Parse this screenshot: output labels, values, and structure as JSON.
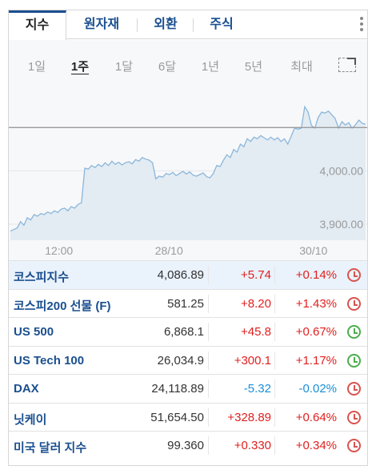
{
  "tabs": [
    {
      "label": "지수",
      "active": true
    },
    {
      "label": "원자재",
      "active": false
    },
    {
      "label": "외환",
      "active": false
    },
    {
      "label": "주식",
      "active": false
    }
  ],
  "ranges": [
    {
      "label": "1일",
      "active": false
    },
    {
      "label": "1주",
      "active": true
    },
    {
      "label": "1달",
      "active": false
    },
    {
      "label": "6달",
      "active": false
    },
    {
      "label": "1년",
      "active": false
    },
    {
      "label": "5년",
      "active": false
    },
    {
      "label": "최대",
      "active": false
    }
  ],
  "chart_data": {
    "type": "area",
    "title": "",
    "xlabel": "",
    "ylabel": "",
    "x_tick_labels": [
      "12:00",
      "28/10",
      "30/10"
    ],
    "y_tick_labels": [
      "4,000.00",
      "3,900.00"
    ],
    "y_ticks": [
      4000,
      3900
    ],
    "ylim": [
      3870,
      4155
    ],
    "reference_value": 4081,
    "grid": true,
    "values": [
      3887,
      3890,
      3893,
      3905,
      3898,
      3912,
      3908,
      3918,
      3915,
      3920,
      3918,
      3923,
      3920,
      3925,
      3922,
      3928,
      3930,
      3925,
      3933,
      3930,
      3937,
      3940,
      4005,
      4003,
      4010,
      4006,
      4012,
      4008,
      4015,
      4010,
      4018,
      4012,
      4016,
      4011,
      4015,
      4017,
      4013,
      4021,
      4018,
      4025,
      4022,
      4020,
      4015,
      3985,
      3990,
      3988,
      3995,
      3993,
      3997,
      3991,
      3995,
      3999,
      3994,
      3998,
      3992,
      3990,
      3993,
      3996,
      3989,
      3987,
      3995,
      4010,
      4008,
      4020,
      4030,
      4025,
      4040,
      4035,
      4050,
      4045,
      4060,
      4055,
      4063,
      4060,
      4066,
      4062,
      4058,
      4063,
      4058,
      4062,
      4055,
      4060,
      4050,
      4065,
      4080,
      4078,
      4080,
      4120,
      4110,
      4085,
      4080,
      4100,
      4110,
      4108,
      4112,
      4105,
      4098,
      4080,
      4092,
      4086,
      4090,
      4080,
      4086,
      4095,
      4089,
      4087
    ],
    "colors": {
      "line": "#8bb6da",
      "fill": "#e3ecf3",
      "reference": "#9a9a9a"
    }
  },
  "quotes": [
    {
      "name": "코스피지수",
      "price": "4,086.89",
      "change": "+5.74",
      "pct": "+0.14%",
      "dir": "up",
      "status": "closed",
      "selected": true
    },
    {
      "name": "코스피200 선물 (F)",
      "price": "581.25",
      "change": "+8.20",
      "pct": "+1.43%",
      "dir": "up",
      "status": "closed",
      "selected": false
    },
    {
      "name": "US 500",
      "price": "6,868.1",
      "change": "+45.8",
      "pct": "+0.67%",
      "dir": "up",
      "status": "open",
      "selected": false
    },
    {
      "name": "US Tech 100",
      "price": "26,034.9",
      "change": "+300.1",
      "pct": "+1.17%",
      "dir": "up",
      "status": "open",
      "selected": false
    },
    {
      "name": "DAX",
      "price": "24,118.89",
      "change": "-5.32",
      "pct": "-0.02%",
      "dir": "down",
      "status": "closed",
      "selected": false
    },
    {
      "name": "닛케이",
      "price": "51,654.50",
      "change": "+328.89",
      "pct": "+0.64%",
      "dir": "up",
      "status": "closed",
      "selected": false
    },
    {
      "name": "미국 달러 지수",
      "price": "99.360",
      "change": "+0.330",
      "pct": "+0.34%",
      "dir": "up",
      "status": "closed",
      "selected": false
    }
  ],
  "icons": {
    "market_closed": "clock-icon-red",
    "market_open": "clock-icon-green",
    "menu": "kebab-menu-icon",
    "expand": "expand-chart-icon"
  }
}
